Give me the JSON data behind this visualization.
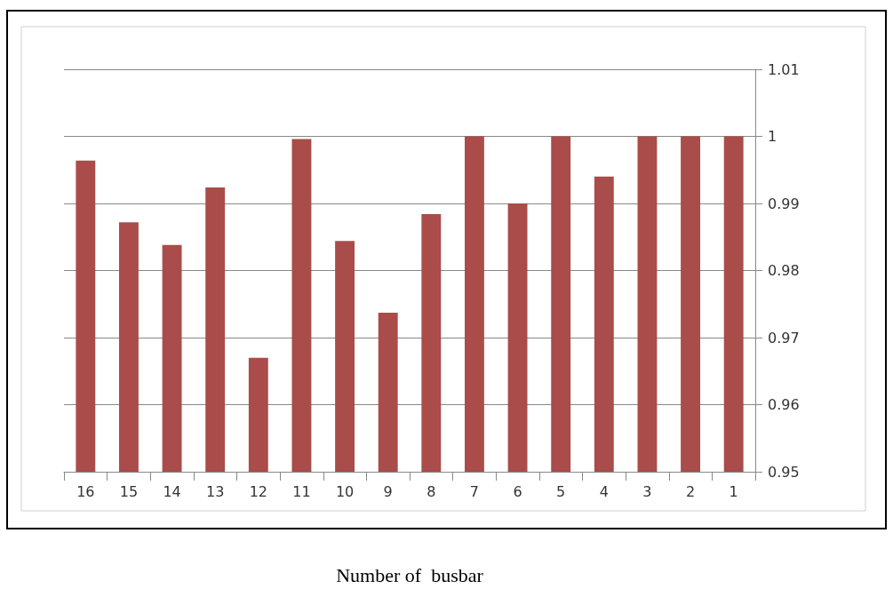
{
  "chart_data": {
    "type": "bar",
    "xlabel": "Number of  busbar",
    "categories": [
      "16",
      "15",
      "14",
      "13",
      "12",
      "11",
      "10",
      "9",
      "8",
      "7",
      "6",
      "5",
      "4",
      "3",
      "2",
      "1"
    ],
    "values": [
      0.9964,
      0.9872,
      0.9838,
      0.9924,
      0.967,
      0.9996,
      0.9844,
      0.9737,
      0.9884,
      1,
      0.99,
      1,
      0.994,
      1,
      1,
      1
    ],
    "color": "#a94c4a",
    "ylim": [
      0.95,
      1.01
    ],
    "yticks": [
      0.95,
      0.96,
      0.97,
      0.98,
      0.99,
      1,
      1.01
    ],
    "grid": "y"
  }
}
